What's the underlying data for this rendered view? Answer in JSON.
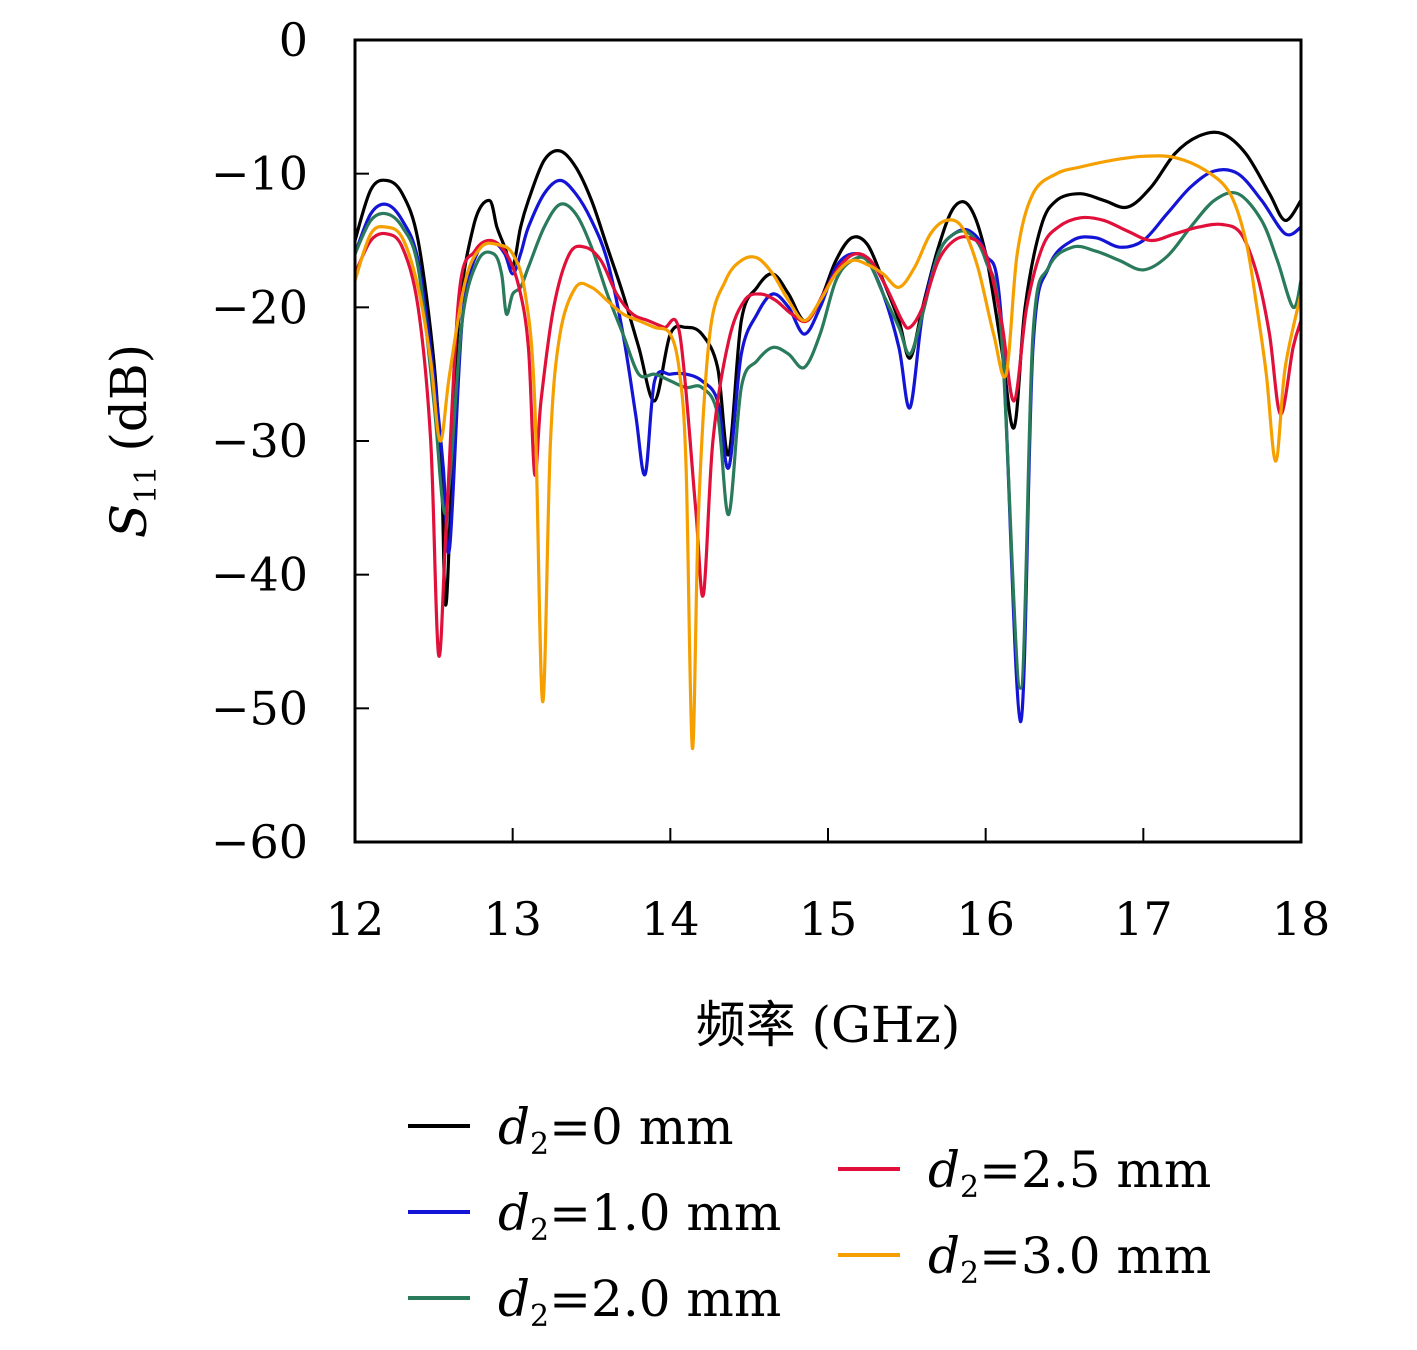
{
  "chart_data": {
    "type": "line",
    "title": "",
    "xlabel": "频率 (GHz)",
    "ylabel": {
      "symbol": "S",
      "subscript": "11",
      "unit": "(dB)"
    },
    "xlim": [
      12,
      18
    ],
    "ylim": [
      -60,
      0
    ],
    "xticks": [
      "12",
      "13",
      "14",
      "15",
      "16",
      "17",
      "18"
    ],
    "yticks": [
      "0",
      "−10",
      "−20",
      "−30",
      "−40",
      "−50",
      "−60"
    ],
    "grid": false,
    "legend_position": "below",
    "series": [
      {
        "name": "d2=0 mm",
        "label_var": "d",
        "label_sub": "2",
        "label_rest": "=0 mm",
        "color": "#000000",
        "x": [
          12.0,
          12.1,
          12.2,
          12.3,
          12.4,
          12.5,
          12.55,
          12.58,
          12.65,
          12.75,
          12.85,
          12.9,
          12.95,
          13.0,
          13.05,
          13.1,
          13.2,
          13.3,
          13.4,
          13.5,
          13.6,
          13.7,
          13.8,
          13.9,
          14.0,
          14.1,
          14.2,
          14.3,
          14.37,
          14.45,
          14.55,
          14.65,
          14.75,
          14.85,
          14.95,
          15.05,
          15.15,
          15.25,
          15.35,
          15.45,
          15.52,
          15.6,
          15.7,
          15.8,
          15.9,
          16.0,
          16.1,
          16.18,
          16.25,
          16.35,
          16.45,
          16.6,
          16.75,
          16.9,
          17.05,
          17.2,
          17.35,
          17.5,
          17.65,
          17.8,
          17.9,
          18.0
        ],
        "y": [
          -15,
          -11.2,
          -10.5,
          -11.5,
          -15,
          -24,
          -33,
          -42,
          -22,
          -14,
          -12,
          -14,
          -15.5,
          -17,
          -14,
          -12,
          -9,
          -8.3,
          -9.5,
          -12,
          -15.5,
          -19,
          -23,
          -27,
          -22,
          -21.5,
          -22,
          -24.5,
          -31,
          -21,
          -18.5,
          -17.5,
          -19,
          -21,
          -19.5,
          -16.5,
          -14.8,
          -15.3,
          -18,
          -21,
          -23.8,
          -20,
          -15.5,
          -12.5,
          -12.5,
          -16,
          -23,
          -29,
          -20,
          -14,
          -12,
          -11.5,
          -12,
          -12.5,
          -11,
          -8.5,
          -7.2,
          -7,
          -8.5,
          -11.5,
          -13.5,
          -12
        ]
      },
      {
        "name": "d2=1.0 mm",
        "label_var": "d",
        "label_sub": "2",
        "label_rest": "=1.0 mm",
        "color": "#1414d6",
        "x": [
          12.0,
          12.1,
          12.2,
          12.3,
          12.4,
          12.5,
          12.56,
          12.6,
          12.68,
          12.78,
          12.88,
          12.95,
          13.0,
          13.05,
          13.1,
          13.2,
          13.3,
          13.4,
          13.5,
          13.6,
          13.7,
          13.78,
          13.84,
          13.9,
          14.0,
          14.1,
          14.2,
          14.3,
          14.37,
          14.45,
          14.55,
          14.65,
          14.75,
          14.85,
          14.95,
          15.05,
          15.15,
          15.25,
          15.35,
          15.45,
          15.52,
          15.6,
          15.7,
          15.8,
          15.9,
          16.0,
          16.1,
          16.22,
          16.3,
          16.4,
          16.55,
          16.7,
          16.85,
          17.0,
          17.15,
          17.3,
          17.45,
          17.6,
          17.75,
          17.9,
          18.0
        ],
        "y": [
          -16,
          -13,
          -12.3,
          -13.5,
          -16.5,
          -25,
          -32,
          -38,
          -21,
          -15.8,
          -15.2,
          -16,
          -17.5,
          -16,
          -14,
          -11.5,
          -10.5,
          -11.5,
          -13.5,
          -16.5,
          -22,
          -28,
          -32.5,
          -25.5,
          -25,
          -25,
          -25.5,
          -27,
          -32,
          -23.5,
          -20.5,
          -19,
          -20,
          -22,
          -20,
          -17,
          -16,
          -16.5,
          -19,
          -23,
          -27.5,
          -20.5,
          -16,
          -14.5,
          -14.3,
          -16,
          -21,
          -51,
          -23,
          -17,
          -15,
          -14.8,
          -15.5,
          -15,
          -13,
          -11,
          -9.8,
          -10,
          -12,
          -14.5,
          -14
        ]
      },
      {
        "name": "d2=2.0 mm",
        "label_var": "d",
        "label_sub": "2",
        "label_rest": "=2.0 mm",
        "color": "#2a7a5c",
        "x": [
          12.0,
          12.1,
          12.2,
          12.3,
          12.4,
          12.5,
          12.56,
          12.6,
          12.68,
          12.78,
          12.88,
          12.93,
          12.96,
          13.0,
          13.05,
          13.1,
          13.2,
          13.3,
          13.4,
          13.5,
          13.6,
          13.7,
          13.8,
          13.9,
          14.0,
          14.1,
          14.2,
          14.3,
          14.37,
          14.45,
          14.55,
          14.65,
          14.75,
          14.85,
          14.95,
          15.05,
          15.15,
          15.25,
          15.35,
          15.45,
          15.52,
          15.6,
          15.7,
          15.8,
          15.9,
          16.0,
          16.1,
          16.22,
          16.3,
          16.4,
          16.55,
          16.7,
          16.85,
          17.0,
          17.15,
          17.3,
          17.45,
          17.6,
          17.75,
          17.85,
          17.95,
          18.0
        ],
        "y": [
          -16,
          -13.5,
          -13,
          -14,
          -17,
          -27,
          -35,
          -33,
          -21,
          -16.5,
          -16,
          -17.5,
          -20.5,
          -19,
          -18.5,
          -17,
          -14,
          -12.3,
          -13,
          -15.5,
          -19,
          -22,
          -25,
          -25,
          -25.5,
          -26,
          -26,
          -28,
          -35.5,
          -26,
          -24,
          -23,
          -23.5,
          -24.5,
          -22,
          -18,
          -16.5,
          -16.5,
          -19,
          -21.5,
          -23.5,
          -20.5,
          -16,
          -14.5,
          -14.5,
          -16.5,
          -22,
          -48.5,
          -22,
          -17,
          -15.5,
          -15.8,
          -16.5,
          -17.2,
          -16.2,
          -14,
          -12,
          -11.5,
          -13.5,
          -16.5,
          -20,
          -18
        ]
      },
      {
        "name": "d2=2.5 mm",
        "label_var": "d",
        "label_sub": "2",
        "label_rest": "=2.5 mm",
        "color": "#e0103a",
        "x": [
          12.0,
          12.1,
          12.2,
          12.3,
          12.4,
          12.48,
          12.53,
          12.58,
          12.66,
          12.76,
          12.86,
          12.96,
          13.04,
          13.1,
          13.14,
          13.18,
          13.26,
          13.36,
          13.46,
          13.56,
          13.66,
          13.76,
          13.86,
          13.96,
          14.06,
          14.16,
          14.21,
          14.27,
          14.37,
          14.47,
          14.57,
          14.67,
          14.77,
          14.87,
          14.97,
          15.07,
          15.17,
          15.27,
          15.37,
          15.47,
          15.52,
          15.6,
          15.7,
          15.8,
          15.9,
          16.0,
          16.1,
          16.18,
          16.26,
          16.36,
          16.46,
          16.6,
          16.75,
          16.9,
          17.05,
          17.2,
          17.35,
          17.5,
          17.62,
          17.72,
          17.8,
          17.87,
          17.95,
          18.0
        ],
        "y": [
          -17.5,
          -15,
          -14.5,
          -15.5,
          -20,
          -30,
          -46,
          -36,
          -19,
          -15.8,
          -15,
          -16,
          -18.5,
          -23,
          -32.5,
          -27,
          -20,
          -16,
          -15.5,
          -16.5,
          -19,
          -20.5,
          -21,
          -21.5,
          -22,
          -35,
          -41.5,
          -30,
          -22.5,
          -19.5,
          -19,
          -19.5,
          -20.5,
          -21,
          -19,
          -17,
          -16,
          -16.5,
          -18.5,
          -21,
          -21.5,
          -20,
          -16.5,
          -15,
          -14.8,
          -16,
          -21,
          -27,
          -20,
          -15.5,
          -14,
          -13.3,
          -13.5,
          -14.3,
          -15,
          -14.5,
          -14,
          -13.8,
          -14.5,
          -17.5,
          -22,
          -28,
          -23,
          -21
        ]
      },
      {
        "name": "d2=3.0 mm",
        "label_var": "d",
        "label_sub": "2",
        "label_rest": "=3.0 mm",
        "color": "#f5a000",
        "x": [
          12.0,
          12.1,
          12.2,
          12.3,
          12.4,
          12.48,
          12.54,
          12.6,
          12.7,
          12.8,
          12.9,
          13.0,
          13.08,
          13.14,
          13.19,
          13.24,
          13.3,
          13.4,
          13.5,
          13.6,
          13.7,
          13.8,
          13.9,
          14.0,
          14.06,
          14.1,
          14.14,
          14.18,
          14.25,
          14.35,
          14.45,
          14.55,
          14.65,
          14.75,
          14.85,
          14.95,
          15.05,
          15.15,
          15.25,
          15.35,
          15.45,
          15.55,
          15.65,
          15.75,
          15.85,
          15.95,
          16.05,
          16.13,
          16.2,
          16.3,
          16.45,
          16.6,
          16.8,
          17.0,
          17.2,
          17.4,
          17.55,
          17.65,
          17.72,
          17.78,
          17.84,
          17.9,
          18.0
        ],
        "y": [
          -18,
          -14.5,
          -14,
          -14.8,
          -18.5,
          -24,
          -30,
          -25,
          -18,
          -15.5,
          -15.3,
          -16,
          -19,
          -27,
          -49.5,
          -30,
          -22,
          -18.5,
          -18.5,
          -19.5,
          -20.5,
          -21,
          -21.5,
          -22,
          -25,
          -32,
          -53,
          -35,
          -22,
          -18,
          -16.5,
          -16.3,
          -17.5,
          -19.5,
          -21,
          -19.5,
          -17.5,
          -16.5,
          -16.8,
          -17.5,
          -18.5,
          -17,
          -14.5,
          -13.5,
          -14,
          -17,
          -22,
          -25,
          -16,
          -11.5,
          -10,
          -9.5,
          -9,
          -8.7,
          -8.8,
          -9.8,
          -11.5,
          -15,
          -20,
          -25,
          -31.5,
          -24.5,
          -19
        ]
      }
    ]
  }
}
